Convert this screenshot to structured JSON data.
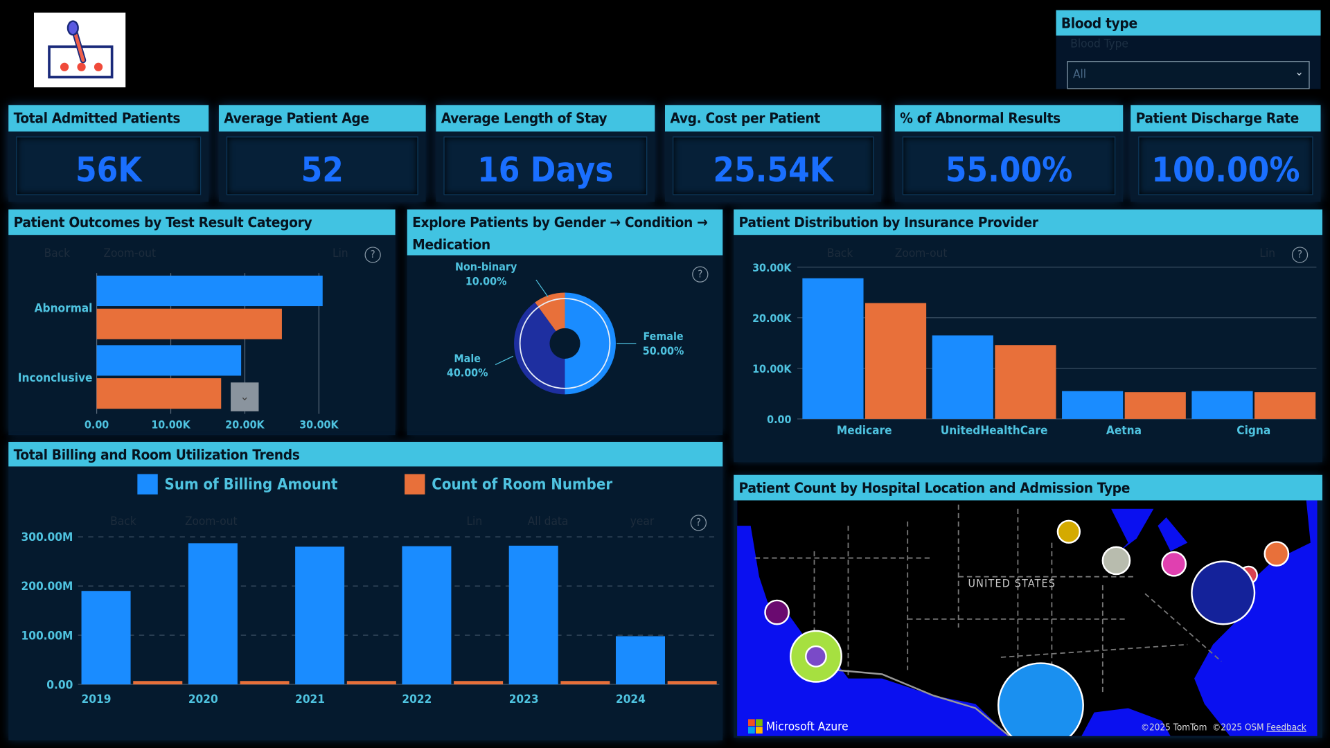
{
  "logo": {
    "name": "lab-dropper-logo"
  },
  "slicer": {
    "title": "Blood type",
    "label": "Blood Type",
    "selected": "All"
  },
  "kpis": [
    {
      "title": "Total Admitted Patients",
      "value": "56K"
    },
    {
      "title": "Average Patient Age",
      "value": "52"
    },
    {
      "title": "Average Length of Stay",
      "value": "16 Days"
    },
    {
      "title": "Avg. Cost per Patient",
      "value": "25.54K"
    },
    {
      "title": "% of Abnormal Results",
      "value": "55.00%"
    },
    {
      "title": "Patient Discharge Rate",
      "value": "100.00%"
    }
  ],
  "toolbar": {
    "back": "Back",
    "zoom_out": "Zoom-out",
    "lin": "Lin",
    "all_data": "All data",
    "year": "year",
    "help": "?"
  },
  "colors": {
    "blue": "#1a8cff",
    "orange": "#e8703a",
    "header": "#41c3e2",
    "panel": "#051a2e",
    "label": "#4fc3e0"
  },
  "chart_data": [
    {
      "type": "bar",
      "orientation": "horizontal",
      "title": "Patient Outcomes by Test Result Category",
      "categories": [
        "Abnormal",
        "Inconclusive"
      ],
      "series": [
        {
          "values": [
            30500,
            19500
          ],
          "color": "#1a8cff"
        },
        {
          "values": [
            25000,
            16800
          ],
          "color": "#e8703a"
        }
      ],
      "ticks": [
        "0.00",
        "10.00K",
        "20.00K",
        "30.00K"
      ],
      "xlim": [
        0,
        30000
      ],
      "grid": true
    },
    {
      "type": "pie",
      "title": "Explore Patients by Gender → Condition → Medication",
      "slices": [
        {
          "label": "Female",
          "value": 50,
          "text": "50.00%",
          "color": "#1a8cff"
        },
        {
          "label": "Male",
          "value": 40,
          "text": "40.00%",
          "color": "#1e2fa0"
        },
        {
          "label": "Non-binary",
          "value": 10,
          "text": "10.00%",
          "color": "#e8703a"
        }
      ]
    },
    {
      "type": "bar",
      "title": "Patient Distribution by Insurance Provider",
      "categories": [
        "Medicare",
        "UnitedHealthCare",
        "Aetna",
        "Cigna"
      ],
      "series": [
        {
          "values": [
            27800,
            16500,
            5500,
            5500
          ],
          "color": "#1a8cff"
        },
        {
          "values": [
            22900,
            14600,
            5300,
            5300
          ],
          "color": "#e8703a"
        }
      ],
      "ticks": [
        "0.00",
        "10.00K",
        "20.00K",
        "30.00K"
      ],
      "ylim": [
        0,
        30000
      ],
      "grid": true
    },
    {
      "type": "bar",
      "title": "Total Billing and Room Utilization Trends",
      "categories": [
        "2019",
        "2020",
        "2021",
        "2022",
        "2023",
        "2024"
      ],
      "series": [
        {
          "name": "Sum of Billing Amount",
          "values": [
            190000000,
            287000000,
            280000000,
            281000000,
            282000000,
            98000000
          ],
          "color": "#1a8cff"
        },
        {
          "name": "Count of Room Number",
          "values": [
            10000,
            10000,
            10000,
            10000,
            10000,
            10000
          ],
          "color": "#e8703a"
        }
      ],
      "ticks": [
        "0.00",
        "100.00M",
        "200.00M",
        "300.00M"
      ],
      "ylim": [
        0,
        300000000
      ],
      "grid": true,
      "legend": "top"
    }
  ],
  "map": {
    "title": "Patient Count by Hospital Location and Admission Type",
    "country_label": "UNITED STATES",
    "brand": "Microsoft Azure",
    "copyright": "©2025 TomTom  ©2025 OSM",
    "feedback": "Feedback",
    "bubbles": [
      {
        "color": "#d4aa00"
      },
      {
        "color": "#b8bcae"
      },
      {
        "color": "#e040b0"
      },
      {
        "color": "#e8703a"
      },
      {
        "color": "#d94050"
      },
      {
        "color": "#14229a"
      },
      {
        "color": "#6a0a70"
      },
      {
        "color": "#a6e040"
      },
      {
        "color": "#7a4ac8"
      },
      {
        "color": "#1a90f0"
      }
    ]
  }
}
